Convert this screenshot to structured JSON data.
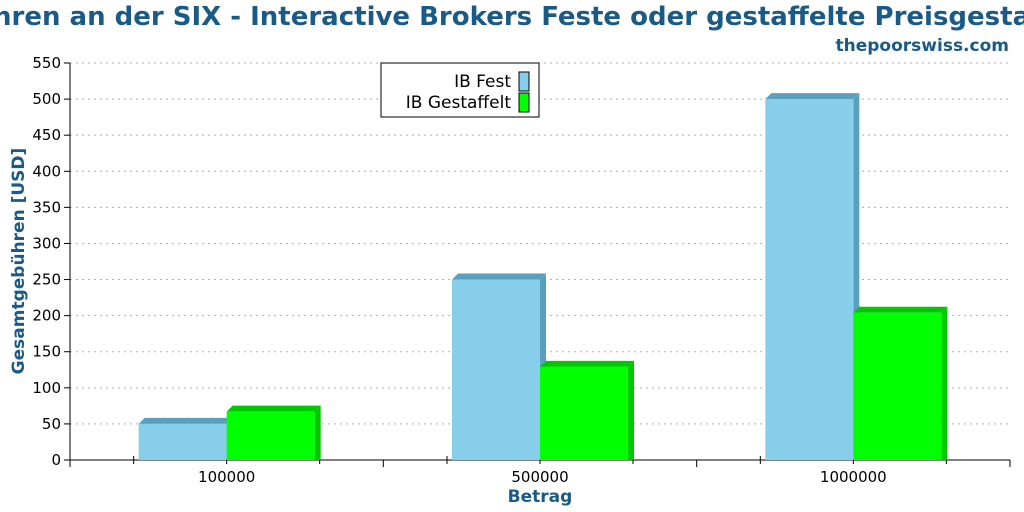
{
  "site": "thepoorswiss.com",
  "chart_data": {
    "type": "bar",
    "title": "Gebühren an der SIX - Interactive Brokers Feste oder gestaffelte Preisgestaltung",
    "xlabel": "Betrag",
    "ylabel": "Gesamtgebühren [USD]",
    "categories": [
      "100000",
      "500000",
      "1000000"
    ],
    "series": [
      {
        "name": "IB Fest",
        "values": [
          50,
          250,
          500
        ],
        "color": "#87ceeb",
        "shade": "#5aa0be"
      },
      {
        "name": "IB Gestaffelt",
        "values": [
          67,
          129,
          204
        ],
        "color": "#00ff00",
        "shade": "#00c800"
      }
    ],
    "ylim": [
      0,
      550
    ],
    "yticks": [
      "0",
      "50",
      "100",
      "150",
      "200",
      "250",
      "300",
      "350",
      "400",
      "450",
      "500",
      "550"
    ],
    "grid": true,
    "legend": "top-center"
  }
}
